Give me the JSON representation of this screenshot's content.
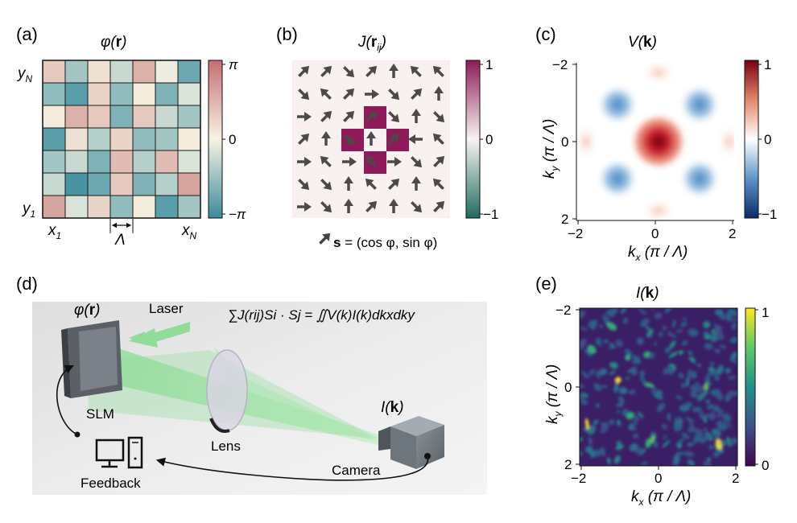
{
  "panel_a": {
    "label": "(a)",
    "title_pre": "φ(",
    "title_bold": "r",
    "title_post": ")",
    "y_top": "y",
    "y_top_sub": "N",
    "y_bottom": "y",
    "y_bottom_sub": "1",
    "x_left": "x",
    "x_left_sub": "1",
    "x_right": "x",
    "x_right_sub": "N",
    "lambda": "Λ",
    "cb_top": "π",
    "cb_mid": "0",
    "cb_bottom": "−π",
    "phase_grid": [
      [
        0.35,
        -0.45,
        0.15,
        -0.25,
        0.55,
        -0.05,
        -0.75
      ],
      [
        -0.55,
        -0.85,
        0.25,
        -0.55,
        0.05,
        -0.65,
        -0.15
      ],
      [
        0.05,
        0.55,
        0.35,
        -0.65,
        0.35,
        -0.25,
        -0.45
      ],
      [
        -0.85,
        0.15,
        -0.35,
        0.25,
        -0.55,
        -0.45,
        0.05
      ],
      [
        -0.45,
        -0.25,
        -0.65,
        0.45,
        -0.35,
        0.45,
        -0.15
      ],
      [
        -0.25,
        -0.95,
        -0.75,
        0.35,
        -0.65,
        -0.35,
        0.65
      ],
      [
        0.65,
        -0.15,
        0.25,
        -0.55,
        0.05,
        -0.85,
        -0.45
      ]
    ]
  },
  "panel_b": {
    "label": "(b)",
    "title": "J(",
    "title_bold": "r",
    "title_sub": "ij",
    "title_post": ")",
    "cb_top": "1",
    "cb_mid": "0",
    "cb_bottom": "−1",
    "legend_bold": "s",
    "legend_text": " = (cos φ, sin φ)"
  },
  "panel_c": {
    "label": "(c)",
    "title": "V(",
    "title_bold": "k",
    "title_post": ")",
    "x_ticks": [
      "−2",
      "0",
      "2"
    ],
    "y_ticks": [
      "−2",
      "0",
      "2"
    ],
    "xlabel": "k",
    "xlabel_sub": "x",
    "xlabel_post": " (π / Λ)",
    "ylabel": "k",
    "ylabel_sub": "y",
    "ylabel_post": " (π / Λ)",
    "cb_top": "1",
    "cb_mid": "0",
    "cb_bottom": "−1"
  },
  "panel_d": {
    "label": "(d)",
    "phase_label_pre": "φ(",
    "phase_label_bold": "r",
    "phase_label_post": ")",
    "laser": "Laser",
    "slm": "SLM",
    "lens": "Lens",
    "camera": "Camera",
    "feedback": "Feedback",
    "intensity_pre": "I(",
    "intensity_bold": "k",
    "intensity_post": ")",
    "formula": "∑J(rij)Si · Sj = ∬V(k)I(k)dkxdky"
  },
  "panel_e": {
    "label": "(e)",
    "title": "I(",
    "title_bold": "k",
    "title_post": ")",
    "x_ticks": [
      "−2",
      "0",
      "2"
    ],
    "y_ticks": [
      "−2",
      "0",
      "2"
    ],
    "xlabel": "k",
    "xlabel_sub": "x",
    "xlabel_post": " (π / Λ)",
    "ylabel": "k",
    "ylabel_sub": "y",
    "ylabel_post": " (π / Λ)",
    "cb_top": "1",
    "cb_bottom": "0"
  },
  "colors": {
    "phase_pos": "#c77b7b",
    "phase_mid": "#f5f2e2",
    "phase_neg": "#3f8f9f",
    "j_pos": "#8e1a5a",
    "j_neg": "#1f6b5e",
    "v_pos": "#8b0a1a",
    "v_neg": "#1f4e8f",
    "viridis_low": "#440154",
    "viridis_high": "#fde725"
  }
}
